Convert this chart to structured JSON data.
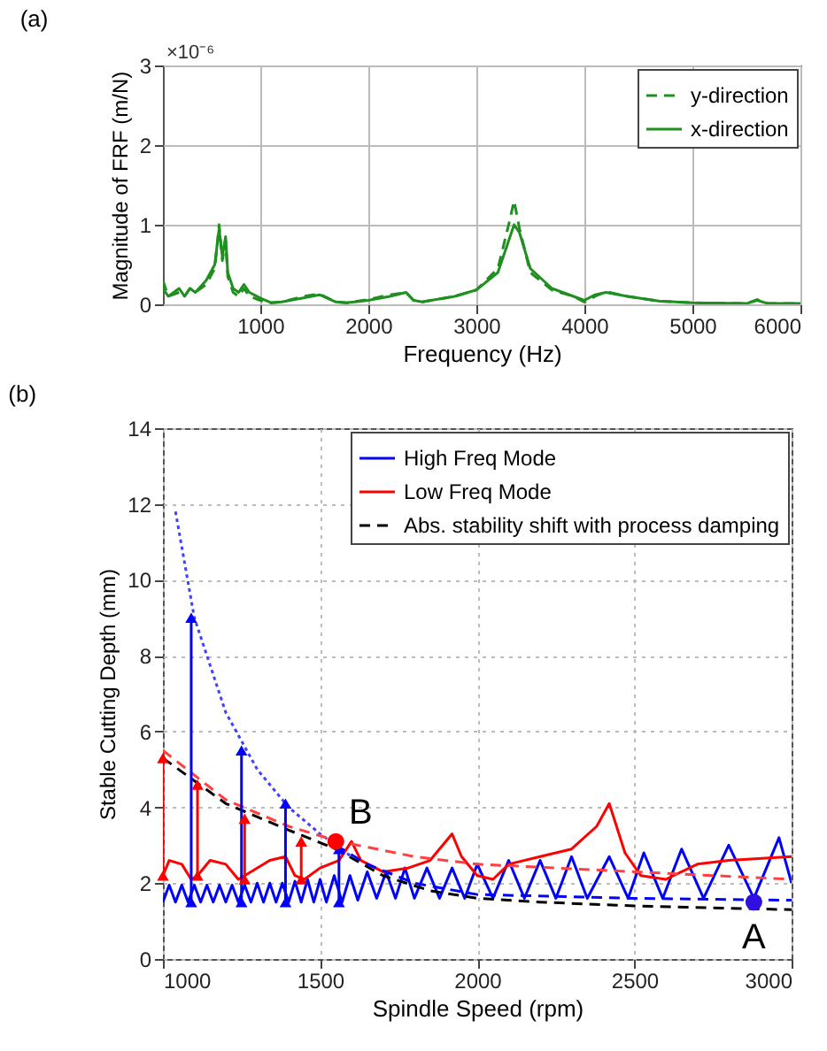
{
  "chart_data": [
    {
      "type": "line",
      "title": "(a)",
      "xlabel": "Frequency (Hz)",
      "ylabel": "Magnitude of FRF (m/N)",
      "annotations": [
        "×10⁻⁶"
      ],
      "xlim": [
        100,
        6000
      ],
      "xticks": [
        1000,
        2000,
        3000,
        4000,
        5000,
        6000
      ],
      "ylim": [
        0,
        3
      ],
      "yticks": [
        0,
        1,
        2,
        3
      ],
      "grid": true,
      "legend": "top right",
      "series": [
        {
          "name": "y-direction",
          "color": "#1f8f1f",
          "line_style": "dashed",
          "x": [
            100,
            150,
            250,
            300,
            350,
            400,
            500,
            580,
            620,
            650,
            680,
            700,
            750,
            800,
            850,
            900,
            1000,
            1100,
            1200,
            1400,
            1550,
            1700,
            1800,
            2000,
            2200,
            2350,
            2420,
            2500,
            2800,
            3000,
            3200,
            3300,
            3350,
            3400,
            3500,
            3700,
            3900,
            4000,
            4100,
            4200,
            4400,
            4700,
            5000,
            5500,
            5600,
            5700,
            6000
          ],
          "values": [
            0.3,
            0.1,
            0.15,
            0.1,
            0.2,
            0.15,
            0.25,
            0.45,
            1.0,
            0.55,
            0.8,
            0.35,
            0.15,
            0.1,
            0.2,
            0.1,
            0.05,
            0.02,
            0.03,
            0.1,
            0.13,
            0.03,
            0.02,
            0.06,
            0.12,
            0.15,
            0.05,
            0.03,
            0.1,
            0.18,
            0.45,
            1.0,
            1.3,
            0.95,
            0.4,
            0.18,
            0.1,
            0.03,
            0.1,
            0.16,
            0.1,
            0.04,
            0.02,
            0.01,
            0.06,
            0.01,
            0.01
          ]
        },
        {
          "name": "x-direction",
          "color": "#1f8f1f",
          "line_style": "solid",
          "x": [
            100,
            150,
            250,
            300,
            350,
            400,
            500,
            580,
            620,
            650,
            680,
            700,
            750,
            800,
            850,
            900,
            1000,
            1100,
            1200,
            1400,
            1550,
            1700,
            1800,
            2000,
            2200,
            2350,
            2420,
            2500,
            2800,
            3000,
            3200,
            3300,
            3350,
            3400,
            3500,
            3700,
            3900,
            4000,
            4100,
            4200,
            4400,
            4700,
            5000,
            5500,
            5600,
            5700,
            6000
          ],
          "values": [
            0.2,
            0.1,
            0.2,
            0.1,
            0.2,
            0.15,
            0.3,
            0.5,
            0.95,
            0.6,
            0.85,
            0.4,
            0.2,
            0.15,
            0.25,
            0.15,
            0.08,
            0.02,
            0.03,
            0.08,
            0.12,
            0.03,
            0.02,
            0.05,
            0.1,
            0.15,
            0.05,
            0.03,
            0.1,
            0.18,
            0.4,
            0.8,
            1.0,
            0.9,
            0.45,
            0.2,
            0.1,
            0.05,
            0.12,
            0.15,
            0.1,
            0.04,
            0.02,
            0.01,
            0.05,
            0.01,
            0.01
          ]
        }
      ]
    },
    {
      "type": "line",
      "title": "(b)",
      "xlabel": "Spindle Speed (rpm)",
      "ylabel": "Stable Cutting Depth (mm)",
      "xlim": [
        1000,
        3000
      ],
      "xticks": [
        1000,
        1500,
        2000,
        2500,
        3000
      ],
      "ylim": [
        0,
        14
      ],
      "yticks": [
        0,
        2,
        4,
        6,
        8,
        10,
        12,
        14
      ],
      "grid": true,
      "legend": "top right",
      "annotations": [
        {
          "text": "B",
          "x": 1550,
          "y": 3.1
        },
        {
          "text": "A",
          "x": 2880,
          "y": 1.5
        }
      ],
      "series": [
        {
          "name": "High Freq Mode",
          "color": "#0000ff",
          "line_style": "solid",
          "x": [
            1000,
            1020,
            1040,
            1060,
            1080,
            1100,
            1120,
            1140,
            1160,
            1180,
            1200,
            1220,
            1240,
            1260,
            1280,
            1300,
            1320,
            1340,
            1360,
            1380,
            1400,
            1420,
            1440,
            1460,
            1480,
            1500,
            1520,
            1545,
            1570,
            1595,
            1620,
            1650,
            1680,
            1710,
            1740,
            1770,
            1800,
            1840,
            1880,
            1920,
            1960,
            2000,
            2050,
            2100,
            2150,
            2200,
            2250,
            2300,
            2350,
            2420,
            2480,
            2530,
            2590,
            2650,
            2720,
            2800,
            2880,
            2960,
            3000
          ],
          "values": [
            1.5,
            1.95,
            1.5,
            1.95,
            1.5,
            1.95,
            1.5,
            1.95,
            1.5,
            1.95,
            1.5,
            1.95,
            1.5,
            1.95,
            1.5,
            2.0,
            1.5,
            2.0,
            1.5,
            2.0,
            1.5,
            2.05,
            1.5,
            2.1,
            1.5,
            2.1,
            1.5,
            2.2,
            1.5,
            2.2,
            1.55,
            2.3,
            1.6,
            2.3,
            1.6,
            2.4,
            1.6,
            2.4,
            1.6,
            2.4,
            1.6,
            2.5,
            1.6,
            2.6,
            1.6,
            2.6,
            1.6,
            2.7,
            1.6,
            2.7,
            1.6,
            2.8,
            1.6,
            2.9,
            1.6,
            3.0,
            1.6,
            3.2,
            2.0
          ]
        },
        {
          "name": "Low Freq Mode",
          "color": "#ff0000",
          "line_style": "solid",
          "x": [
            1000,
            1020,
            1060,
            1090,
            1110,
            1150,
            1200,
            1240,
            1280,
            1340,
            1390,
            1420,
            1450,
            1500,
            1560,
            1600,
            1630,
            1700,
            1780,
            1850,
            1920,
            1950,
            2000,
            2050,
            2100,
            2200,
            2300,
            2380,
            2420,
            2470,
            2520,
            2600,
            2700,
            2800,
            3000
          ],
          "values": [
            2.2,
            2.6,
            2.5,
            2.1,
            2.2,
            2.6,
            2.5,
            2.1,
            2.3,
            2.6,
            2.7,
            2.2,
            2.1,
            2.4,
            2.6,
            3.1,
            2.6,
            2.3,
            2.4,
            2.6,
            3.3,
            2.7,
            2.2,
            2.1,
            2.5,
            2.7,
            2.9,
            3.5,
            4.1,
            2.8,
            2.2,
            2.1,
            2.5,
            2.6,
            2.7
          ]
        },
        {
          "name": "Abs. stability shift with process damping",
          "color": "#000000",
          "line_style": "dashed",
          "x": [
            1000,
            1200,
            1400,
            1550,
            1700,
            1850,
            2000,
            2200,
            2500,
            3000
          ],
          "values": [
            5.3,
            4.1,
            3.4,
            2.9,
            2.2,
            1.8,
            1.6,
            1.5,
            1.4,
            1.3
          ]
        },
        {
          "color": "#4040ff",
          "line_style": "dotted",
          "x": [
            1040,
            1100,
            1200,
            1300,
            1400,
            1500,
            1600
          ],
          "values": [
            11.8,
            9.0,
            6.5,
            5.0,
            4.0,
            3.3,
            2.7
          ]
        },
        {
          "color": "#0000ff",
          "line_style": "dashed",
          "x": [
            1550,
            1650,
            1800,
            2000,
            2500,
            3000
          ],
          "values": [
            3.0,
            2.5,
            2.0,
            1.7,
            1.6,
            1.55
          ]
        },
        {
          "color": "#ff4040",
          "line_style": "dashed",
          "x": [
            1000,
            1200,
            1400,
            1560,
            1800,
            2000,
            2500,
            3000
          ],
          "values": [
            5.5,
            4.2,
            3.5,
            3.1,
            2.7,
            2.5,
            2.3,
            2.1
          ]
        },
        {
          "color": "#0000ff",
          "line_style": "solid",
          "marker": "triangle",
          "x": [
            1090,
            1090
          ],
          "values": [
            1.5,
            9.0
          ]
        },
        {
          "color": "#0000ff",
          "line_style": "solid",
          "marker": "triangle",
          "x": [
            1250,
            1250
          ],
          "values": [
            1.5,
            5.5
          ]
        },
        {
          "color": "#0000ff",
          "line_style": "solid",
          "marker": "triangle",
          "x": [
            1390,
            1390
          ],
          "values": [
            1.5,
            4.1
          ]
        },
        {
          "color": "#0000ff",
          "line_style": "solid",
          "marker": "triangle",
          "x": [
            1560,
            1560
          ],
          "values": [
            1.5,
            2.9
          ]
        },
        {
          "color": "#ff0000",
          "line_style": "solid",
          "marker": "triangle",
          "x": [
            1000,
            1000
          ],
          "values": [
            2.2,
            5.3
          ]
        },
        {
          "color": "#ff0000",
          "line_style": "solid",
          "marker": "triangle",
          "x": [
            1110,
            1110
          ],
          "values": [
            2.2,
            4.6
          ]
        },
        {
          "color": "#ff0000",
          "line_style": "solid",
          "marker": "triangle",
          "x": [
            1260,
            1260
          ],
          "values": [
            2.1,
            3.7
          ]
        },
        {
          "color": "#ff0000",
          "line_style": "solid",
          "marker": "triangle",
          "x": [
            1440,
            1440
          ],
          "values": [
            2.1,
            3.1
          ]
        },
        {
          "type": "scatter",
          "color": "#ff0000",
          "marker": "circle",
          "x": [
            1550
          ],
          "values": [
            3.1
          ]
        },
        {
          "type": "scatter",
          "color": "#3010e0",
          "marker": "circle",
          "x": [
            2880
          ],
          "values": [
            1.5
          ]
        }
      ]
    }
  ]
}
